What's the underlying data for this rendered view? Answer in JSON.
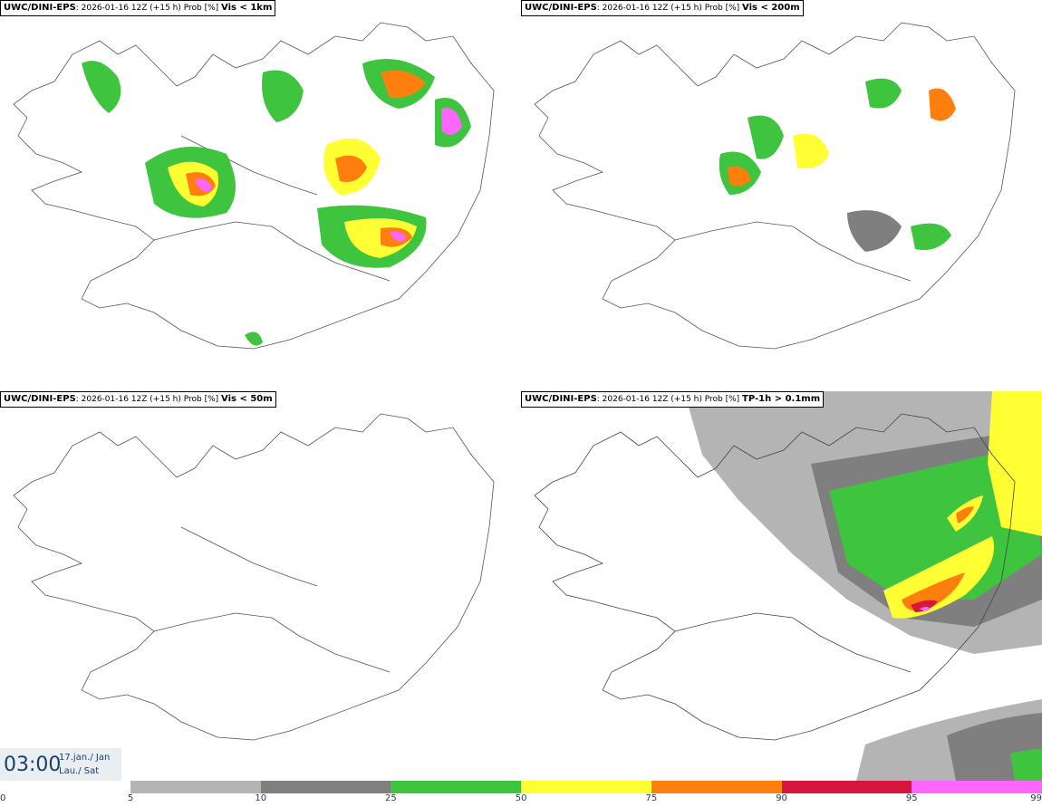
{
  "panels": [
    {
      "model": "UWC/DINI-EPS",
      "run": ": 2026-01-16 12Z (+15 h) Prob [%]",
      "threshold": "Vis < 1km"
    },
    {
      "model": "UWC/DINI-EPS",
      "run": ": 2026-01-16 12Z (+15 h) Prob [%]",
      "threshold": "Vis < 200m"
    },
    {
      "model": "UWC/DINI-EPS",
      "run": ": 2026-01-16 12Z (+15 h) Prob [%]",
      "threshold": "Vis < 50m"
    },
    {
      "model": "UWC/DINI-EPS",
      "run": ": 2026-01-16 12Z (+15 h) Prob [%]",
      "threshold": "TP-1h > 0.1mm"
    }
  ],
  "valid_time": {
    "time": "03:00",
    "date_line1": "17.jan./ Jan",
    "date_line2": "Lau./ Sat"
  },
  "colorbar": {
    "ticks": [
      "0",
      "5",
      "10",
      "25",
      "50",
      "75",
      "90",
      "95",
      "99"
    ],
    "bins": [
      {
        "from": 5,
        "to": 10,
        "color": "#b4b4b4"
      },
      {
        "from": 10,
        "to": 25,
        "color": "#7f7f7f"
      },
      {
        "from": 25,
        "to": 50,
        "color": "#3ec43e"
      },
      {
        "from": 50,
        "to": 75,
        "color": "#ffff33"
      },
      {
        "from": 75,
        "to": 90,
        "color": "#ff7f0e"
      },
      {
        "from": 90,
        "to": 95,
        "color": "#d6163c"
      },
      {
        "from": 95,
        "to": 99,
        "color": "#ff66ff"
      }
    ]
  }
}
